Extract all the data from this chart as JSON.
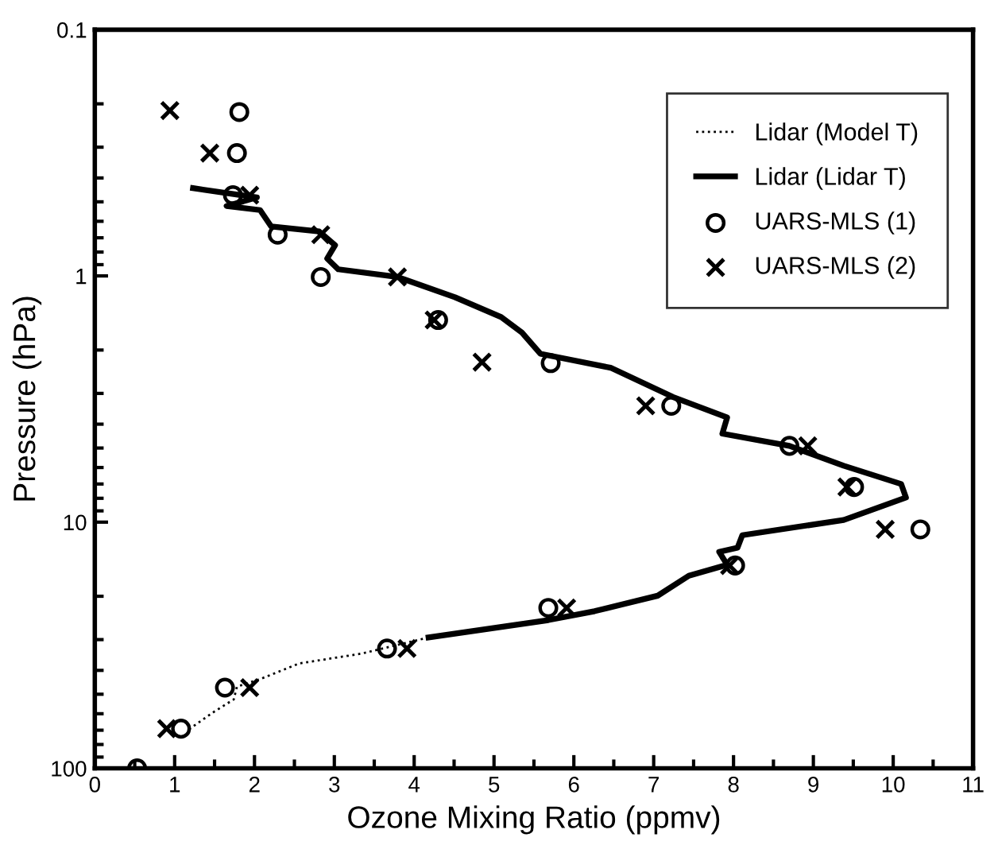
{
  "chart_data": {
    "type": "line",
    "xlabel": "Ozone Mixing Ratio (ppmv)",
    "ylabel": "Pressure (hPa)",
    "log": "y",
    "xlim": [
      0,
      11
    ],
    "xticks": [
      0,
      1,
      2,
      3,
      4,
      5,
      6,
      7,
      8,
      9,
      10,
      11
    ],
    "ylim": [
      100,
      0.1
    ],
    "yticks": [
      {
        "value": 0.1,
        "label": "0.1"
      },
      1,
      10,
      100
    ],
    "grid": false,
    "legend": "top right",
    "series": [
      {
        "name": "Lidar (Model T)",
        "line_style": "dotted",
        "color": "#000000",
        "x": [
          4.18,
          3.34,
          2.56,
          2.07,
          1.78,
          1.74,
          1.49,
          1.19
        ],
        "values": [
          29.4,
          34.2,
          37.5,
          43.4,
          46.6,
          52.5,
          59,
          69
        ]
      },
      {
        "name": "Lidar (Lidar T)",
        "line_style": "solid",
        "color": "#000000",
        "x": [
          1.23,
          2.03,
          1.65,
          2.07,
          2.21,
          2.81,
          3.01,
          2.91,
          3.05,
          3.79,
          4.51,
          5.09,
          5.35,
          5.58,
          6.46,
          7.24,
          7.92,
          7.86,
          8.7,
          9.38,
          10.1,
          10.16,
          9.38,
          8.11,
          8.05,
          7.82,
          7.92,
          7.44,
          7.05,
          6.26,
          5.68,
          4.18
        ],
        "values": [
          0.44,
          0.48,
          0.52,
          0.54,
          0.63,
          0.66,
          0.75,
          0.85,
          0.94,
          1.01,
          1.22,
          1.47,
          1.7,
          2.07,
          2.36,
          3.1,
          3.76,
          4.37,
          4.9,
          5.9,
          7,
          7.95,
          9.8,
          11.3,
          12.7,
          13.2,
          14.9,
          16.5,
          19.9,
          23,
          25,
          29.4
        ]
      },
      {
        "name": "UARS-MLS (1)",
        "type": "scatter",
        "marker": "circle",
        "color": "#000000",
        "x": [
          1.81,
          1.78,
          1.73,
          2.29,
          2.83,
          4.3,
          5.71,
          7.22,
          8.7,
          9.51,
          10.34,
          8.02,
          5.68,
          3.66,
          1.63,
          1.08,
          0.53
        ],
        "values": [
          0.216,
          0.317,
          0.47,
          0.68,
          1.01,
          1.51,
          2.26,
          3.37,
          4.9,
          7.2,
          10.7,
          15,
          22.3,
          32.6,
          47,
          69,
          100
        ]
      },
      {
        "name": "UARS-MLS (2)",
        "type": "scatter",
        "marker": "cross",
        "color": "#000000",
        "x": [
          0.94,
          1.44,
          1.94,
          2.83,
          3.79,
          4.25,
          4.85,
          6.9,
          8.93,
          9.42,
          9.9,
          7.95,
          5.91,
          3.91,
          1.94,
          0.9
        ],
        "values": [
          0.213,
          0.317,
          0.47,
          0.68,
          1.01,
          1.51,
          2.24,
          3.37,
          4.9,
          7.2,
          10.7,
          15,
          22.3,
          32.6,
          47,
          69
        ]
      }
    ]
  }
}
